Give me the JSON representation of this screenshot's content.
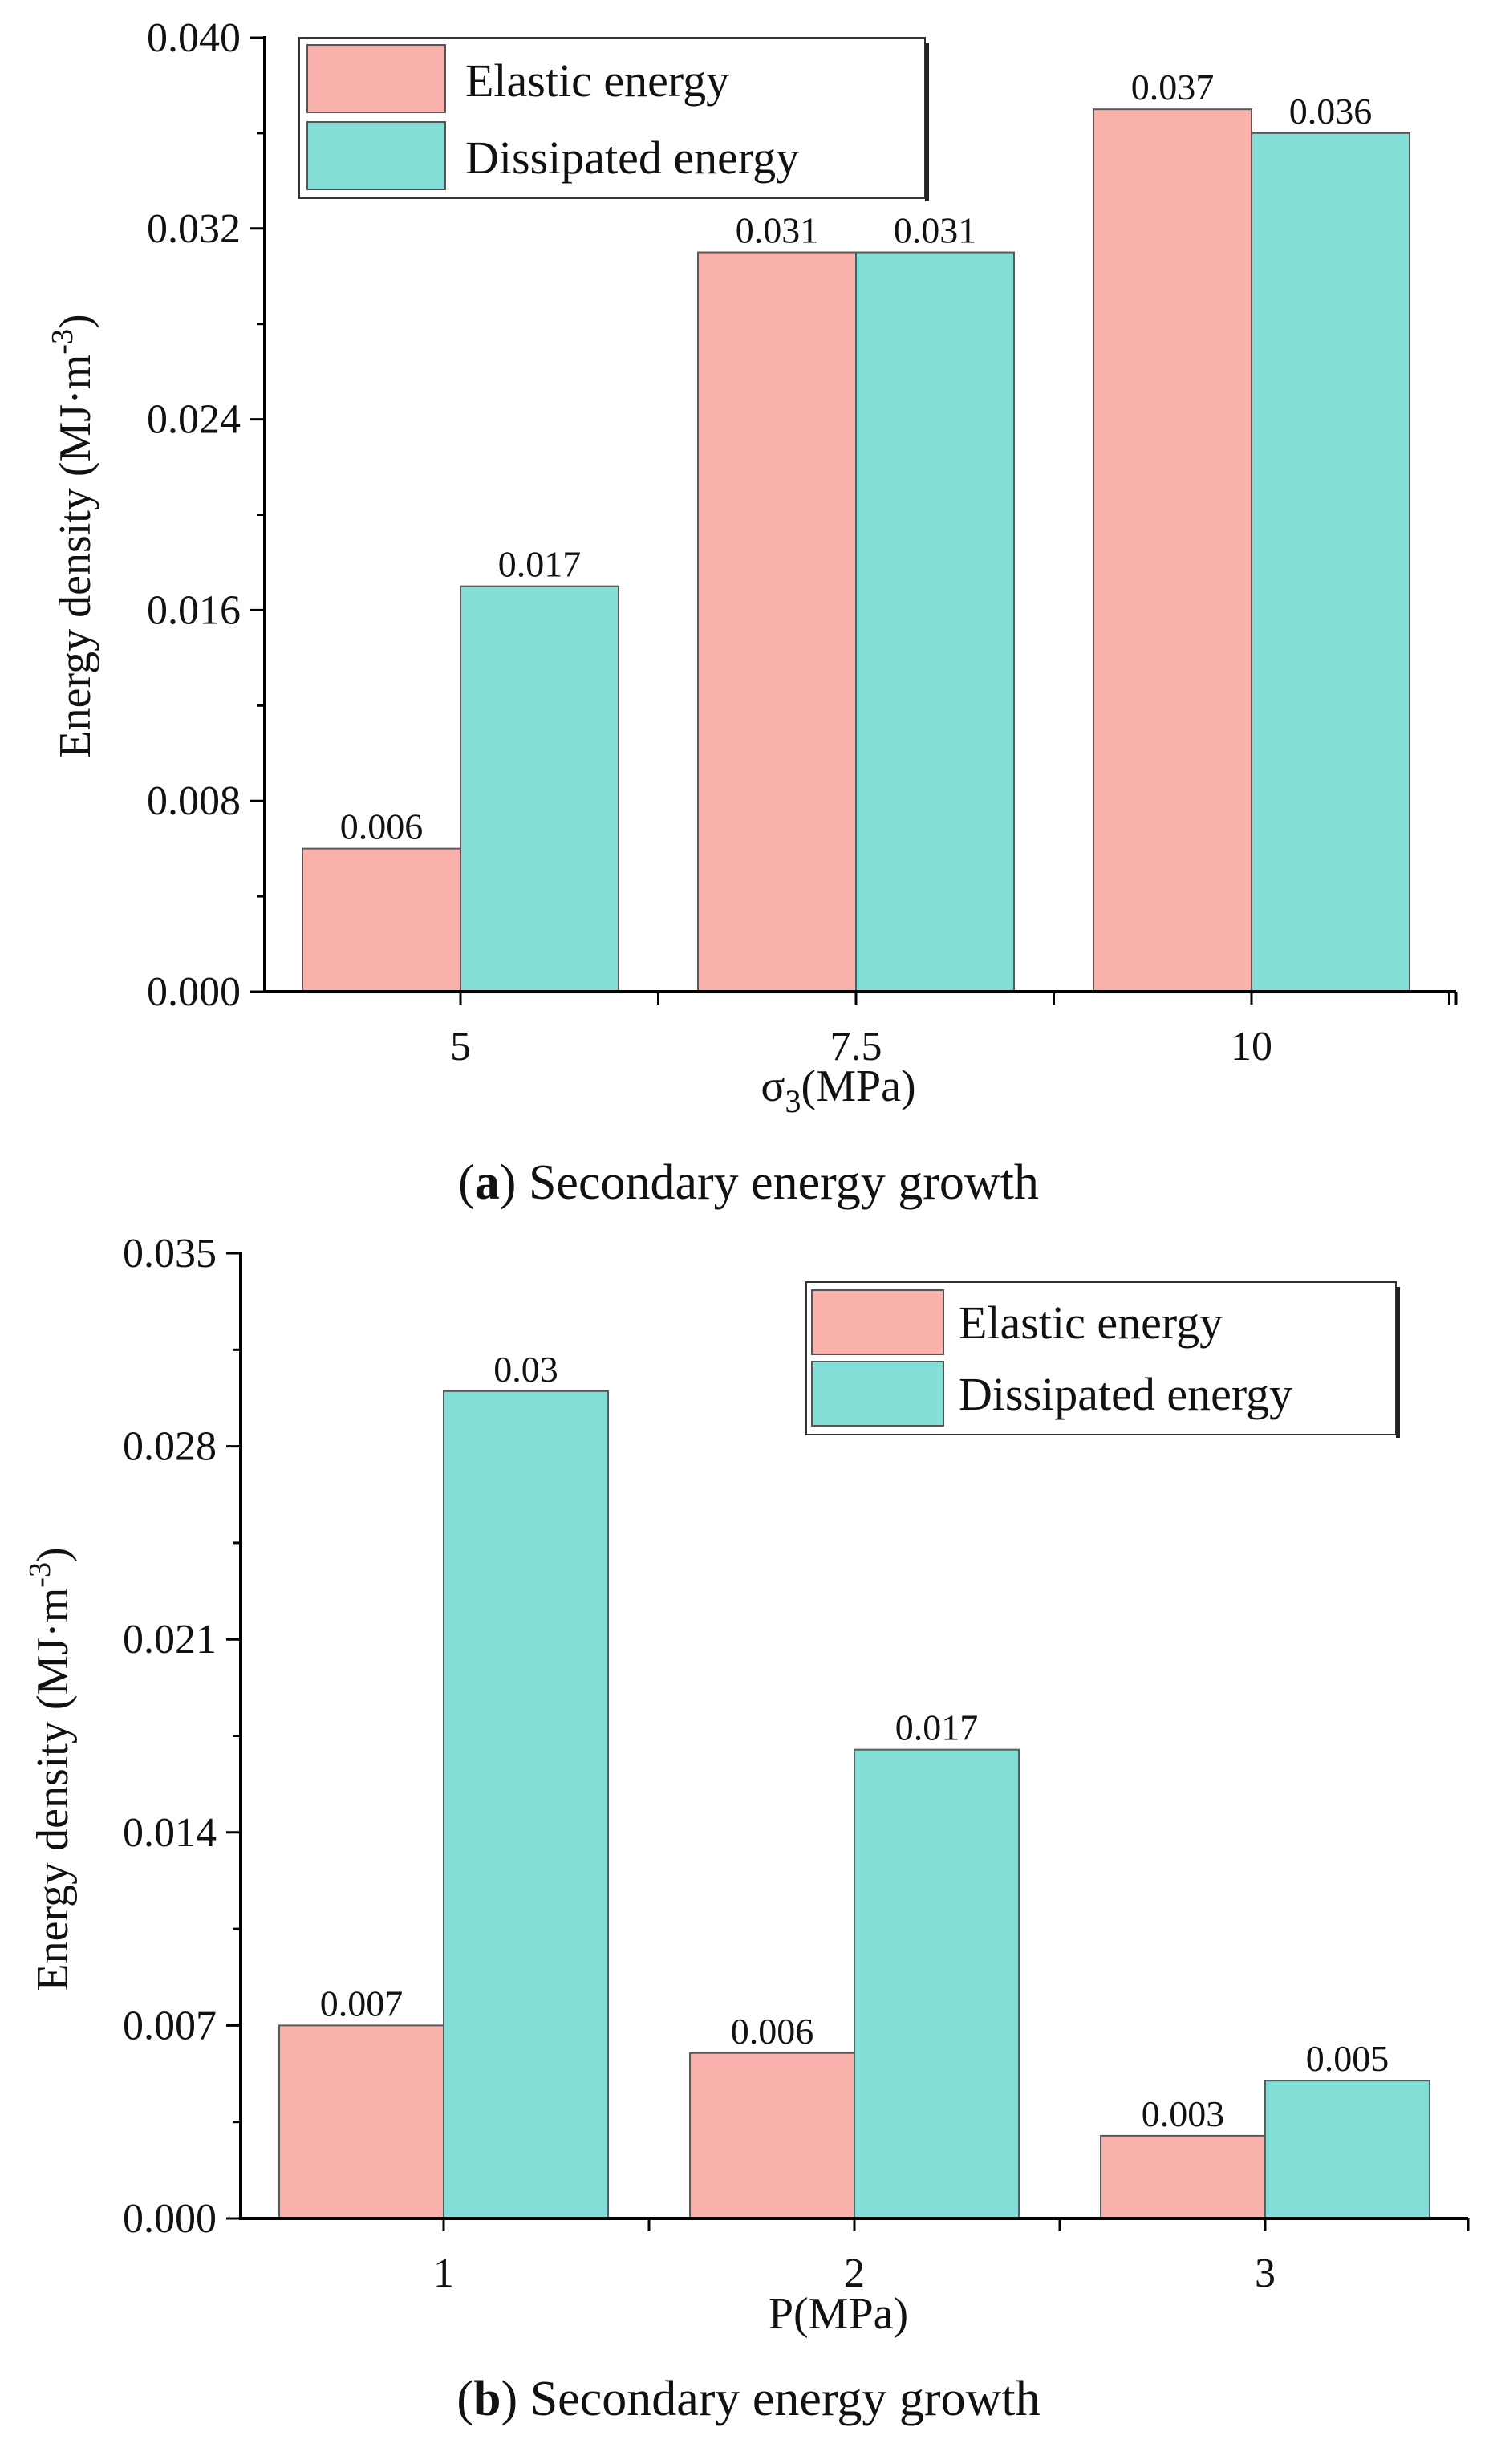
{
  "chart_data": [
    {
      "type": "bar",
      "title": "",
      "categories": [
        "5",
        "7.5",
        "10"
      ],
      "series": [
        {
          "name": "Elastic energy",
          "values": [
            0.006,
            0.031,
            0.037
          ],
          "color": "#FAB0AB"
        },
        {
          "name": "Dissipated energy",
          "values": [
            0.017,
            0.031,
            0.036
          ],
          "color": "#82DED6"
        }
      ],
      "data_labels": [
        [
          "0.006",
          "0.031",
          "0.037"
        ],
        [
          "0.017",
          "0.031",
          "0.036"
        ]
      ],
      "yticks": [
        0,
        0.008,
        0.016,
        0.024,
        0.032,
        0.04
      ],
      "ytick_labels": [
        "0.000",
        "0.008",
        "0.016",
        "0.024",
        "0.032",
        "0.040"
      ],
      "ylim": [
        0,
        0.04
      ],
      "ylabel": "Energy density (MJ·m",
      "ylabel_sup": "-3",
      "ylabel_close": ")",
      "xlabel_main": "σ",
      "xlabel_sub": "3",
      "xlabel_rest": "(MPa)",
      "legend_position": "top-left",
      "caption_letter": "a",
      "caption_open": "(",
      "caption_close": ")",
      "caption_text": " Secondary energy growth"
    },
    {
      "type": "bar",
      "title": "",
      "categories": [
        "1",
        "2",
        "3"
      ],
      "series": [
        {
          "name": "Elastic energy",
          "values": [
            0.007,
            0.006,
            0.003
          ],
          "color": "#FAB0AB"
        },
        {
          "name": "Dissipated energy",
          "values": [
            0.03,
            0.017,
            0.005
          ],
          "color": "#82DED6"
        }
      ],
      "data_labels": [
        [
          "0.007",
          "0.006",
          "0.003"
        ],
        [
          "0.03",
          "0.017",
          "0.005"
        ]
      ],
      "yticks": [
        0,
        0.007,
        0.014,
        0.021,
        0.028,
        0.035
      ],
      "ytick_labels": [
        "0.000",
        "0.007",
        "0.014",
        "0.021",
        "0.028",
        "0.035"
      ],
      "ylim": [
        0,
        0.035
      ],
      "ylabel": "Energy density (MJ·m",
      "ylabel_sup": "-3",
      "ylabel_close": ")",
      "xlabel_main": "P(MPa)",
      "xlabel_sub": "",
      "xlabel_rest": "",
      "legend_position": "top-right",
      "caption_letter": "b",
      "caption_open": "(",
      "caption_close": ")",
      "caption_text": " Secondary energy growth"
    }
  ]
}
